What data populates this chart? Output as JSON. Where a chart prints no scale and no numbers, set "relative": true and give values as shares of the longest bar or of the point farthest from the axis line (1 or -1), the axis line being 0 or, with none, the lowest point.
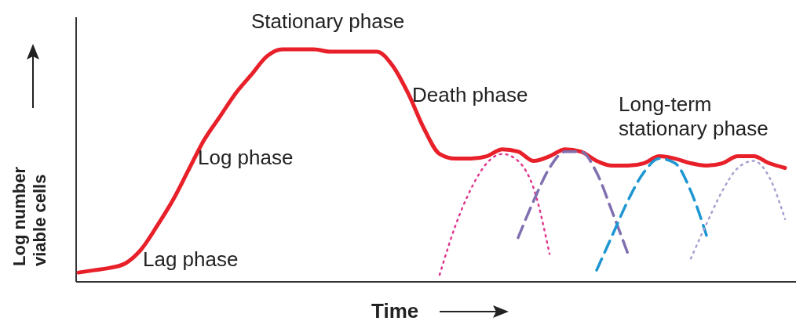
{
  "chart_data": {
    "type": "line",
    "relative": true,
    "xlabel": "Time",
    "ylabel": "Log number viable cells",
    "categories": [
      null,
      null,
      null,
      null,
      null,
      null,
      null,
      null,
      null,
      null,
      null,
      null,
      null,
      null,
      null,
      null,
      null,
      null,
      null,
      null,
      null,
      null,
      null,
      null,
      null,
      null,
      null,
      null,
      null,
      null,
      null,
      null,
      null,
      null,
      null,
      null,
      null,
      null,
      null,
      null,
      null,
      null,
      null,
      null,
      null,
      null
    ],
    "annotations": [
      "Stationary phase",
      "Log phase",
      "Lag phase",
      "Death phase",
      "Long-term stationary phase"
    ],
    "series": [
      {
        "color": "#e8202a",
        "line_style": "solid",
        "values": [
          0.04,
          0.05,
          0.06,
          0.08,
          0.14,
          0.24,
          0.35,
          0.48,
          0.61,
          0.71,
          0.81,
          0.89,
          0.97,
          1.0,
          1.0,
          1.0,
          0.99,
          0.99,
          0.99,
          0.99,
          0.93,
          0.81,
          0.66,
          0.55,
          0.53,
          0.53,
          0.54,
          0.57,
          0.56,
          0.52,
          0.54,
          0.57,
          0.56,
          0.52,
          0.5,
          0.5,
          0.51,
          0.54,
          0.53,
          0.51,
          0.5,
          0.51,
          0.54,
          0.54,
          0.51,
          0.49
        ]
      },
      {
        "color": "#e0368f",
        "line_style": "dotted",
        "values": [
          null,
          null,
          null,
          null,
          null,
          null,
          null,
          null,
          null,
          null,
          null,
          null,
          null,
          null,
          null,
          null,
          null,
          null,
          null,
          null,
          null,
          null,
          null,
          0.03,
          0.24,
          0.4,
          0.51,
          0.55,
          0.52,
          0.4,
          0.12,
          null,
          null,
          null,
          null,
          null,
          null,
          null,
          null,
          null,
          null,
          null,
          null,
          null,
          null,
          null
        ]
      },
      {
        "color": "#8070b0",
        "line_style": "dashed",
        "values": [
          null,
          null,
          null,
          null,
          null,
          null,
          null,
          null,
          null,
          null,
          null,
          null,
          null,
          null,
          null,
          null,
          null,
          null,
          null,
          null,
          null,
          null,
          null,
          null,
          null,
          null,
          null,
          null,
          0.19,
          0.35,
          0.49,
          0.56,
          0.56,
          0.47,
          0.3,
          0.12,
          null,
          null,
          null,
          null,
          null,
          null,
          null,
          null,
          null,
          null
        ]
      },
      {
        "color": "#1e96d2",
        "line_style": "dashed",
        "values": [
          null,
          null,
          null,
          null,
          null,
          null,
          null,
          null,
          null,
          null,
          null,
          null,
          null,
          null,
          null,
          null,
          null,
          null,
          null,
          null,
          null,
          null,
          null,
          null,
          null,
          null,
          null,
          null,
          null,
          null,
          null,
          null,
          null,
          0.05,
          0.2,
          0.35,
          0.47,
          0.53,
          0.51,
          0.39,
          0.2,
          null,
          null,
          null,
          null,
          null
        ]
      },
      {
        "color": "#a8a0d0",
        "line_style": "dotted",
        "values": [
          null,
          null,
          null,
          null,
          null,
          null,
          null,
          null,
          null,
          null,
          null,
          null,
          null,
          null,
          null,
          null,
          null,
          null,
          null,
          null,
          null,
          null,
          null,
          null,
          null,
          null,
          null,
          null,
          null,
          null,
          null,
          null,
          null,
          null,
          null,
          null,
          null,
          null,
          null,
          0.1,
          0.25,
          0.39,
          0.49,
          0.52,
          0.45,
          0.27
        ]
      }
    ]
  }
}
